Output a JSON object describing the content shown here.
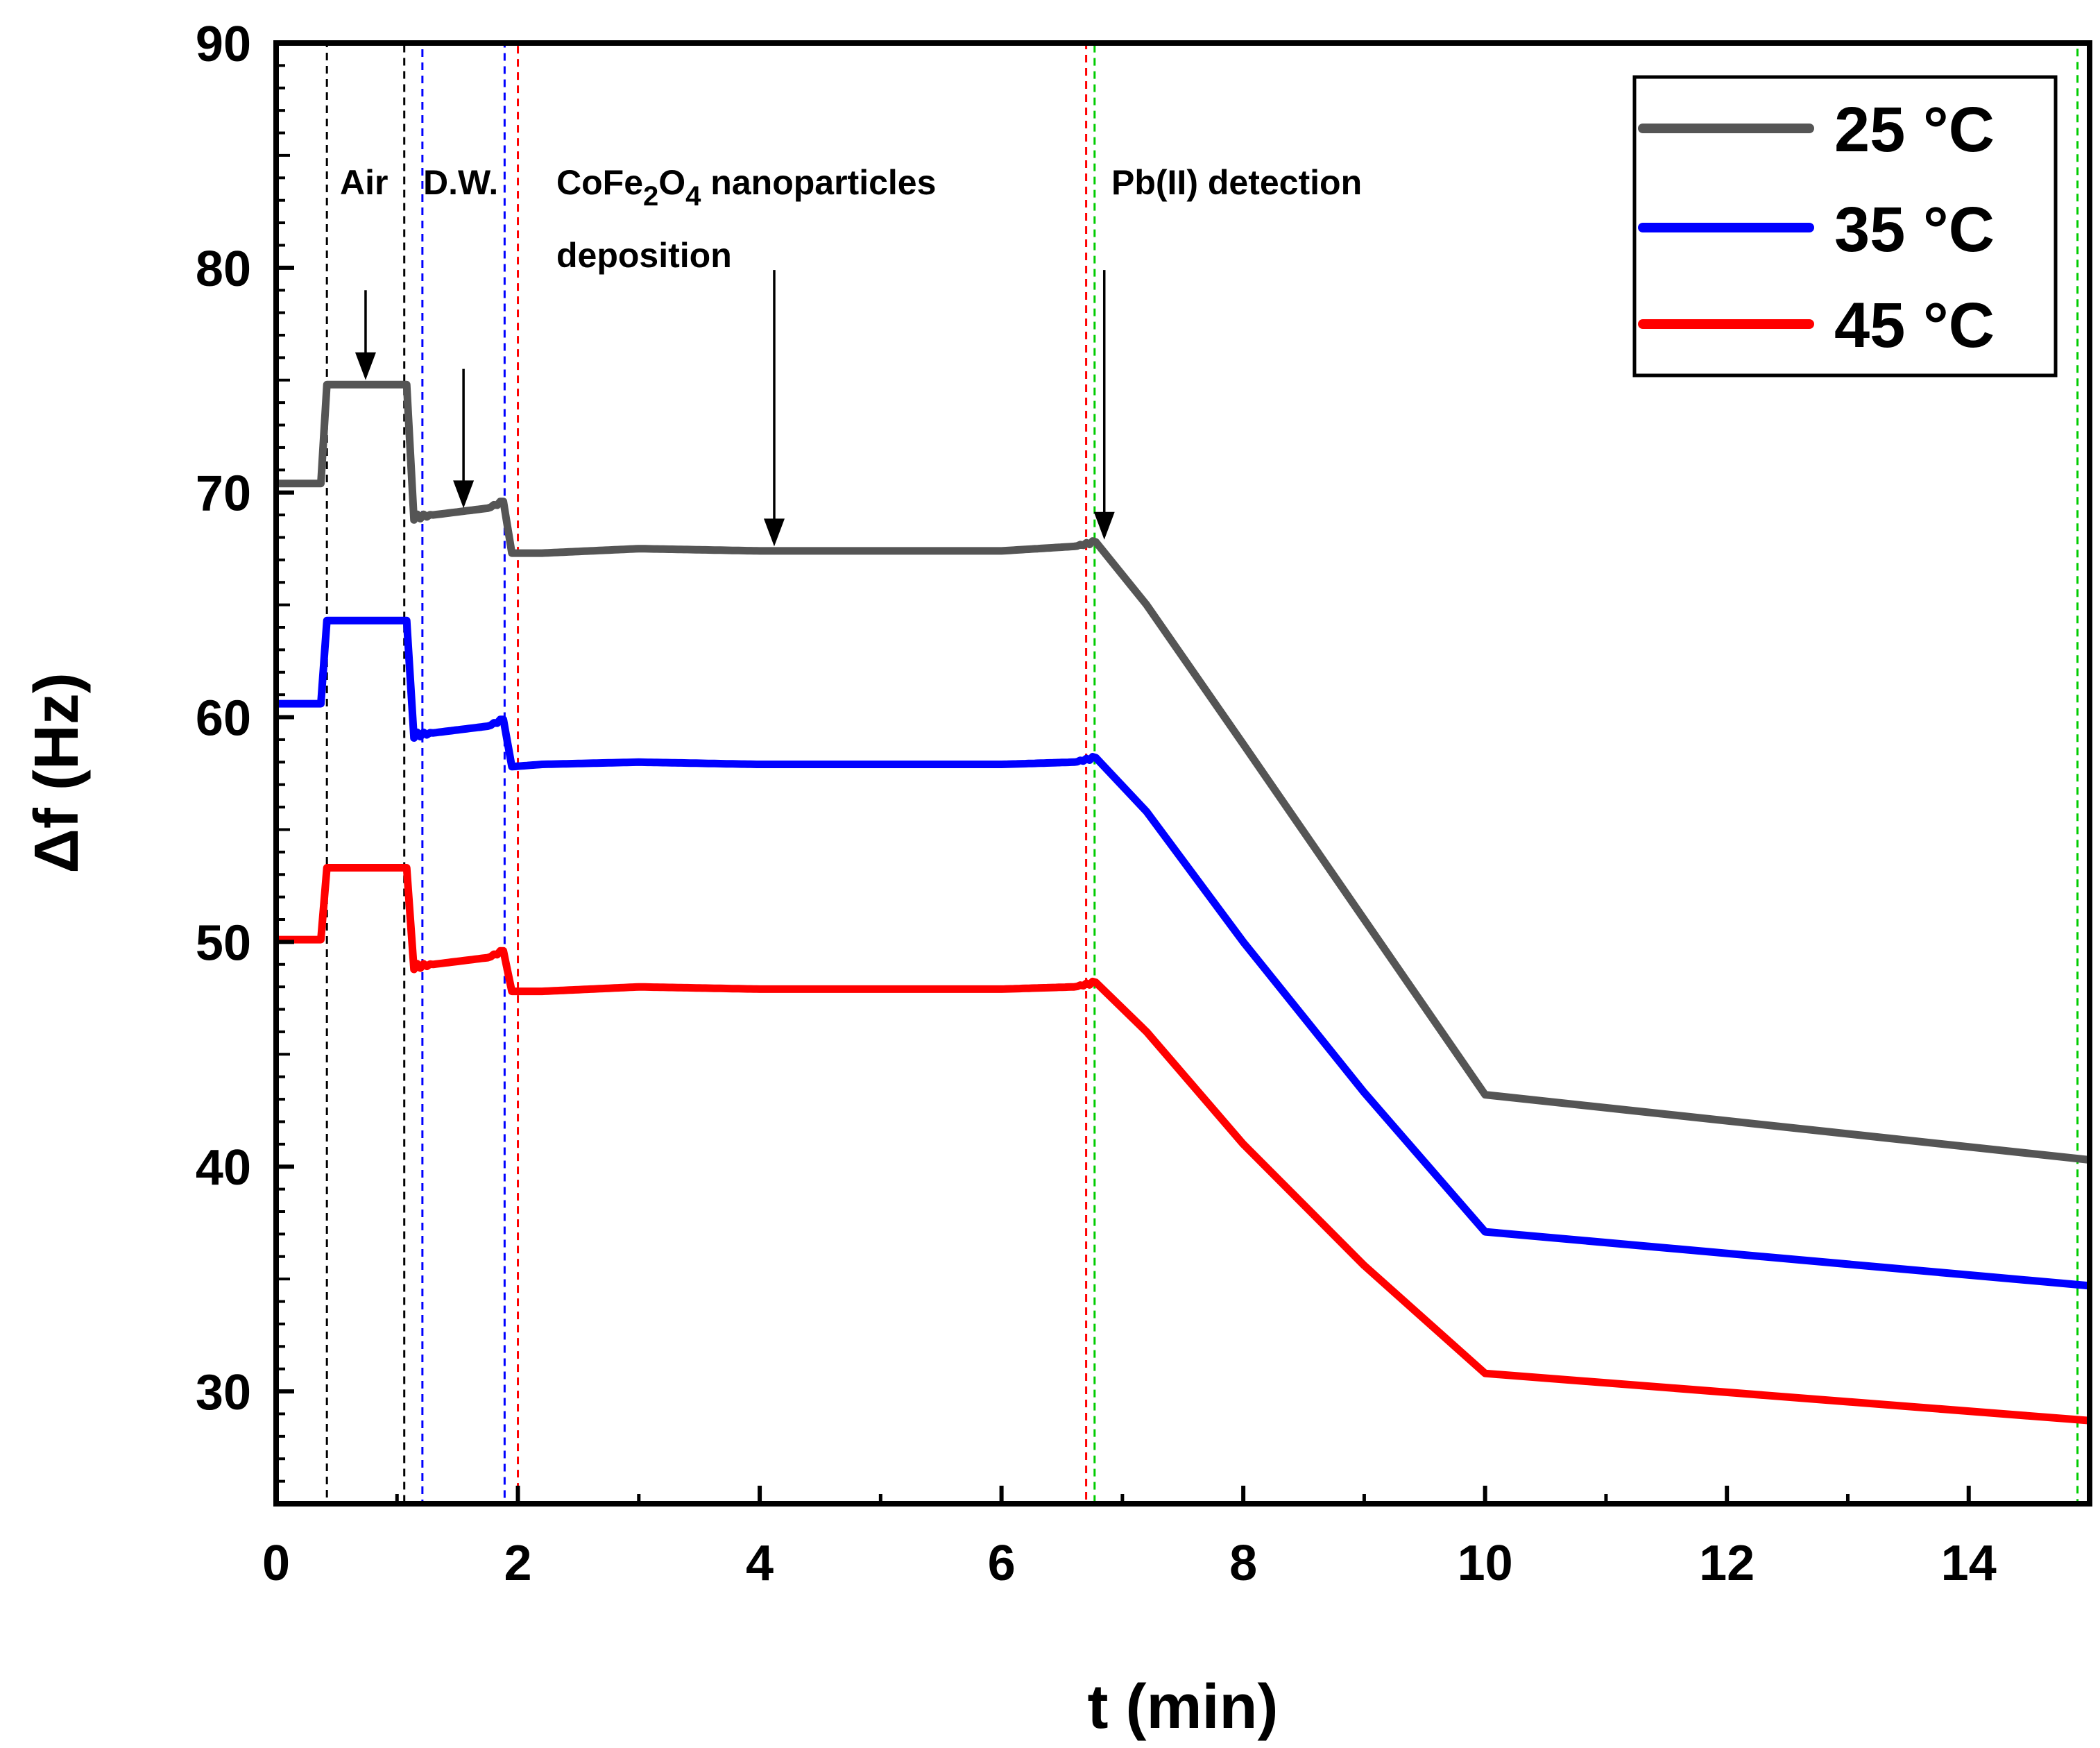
{
  "chart_data": {
    "type": "line",
    "xlabel": "t (min)",
    "ylabel": "Δf (Hz)",
    "xlim": [
      0,
      15
    ],
    "ylim": [
      25,
      90
    ],
    "xticks": [
      0,
      2,
      4,
      6,
      8,
      10,
      12,
      14
    ],
    "yticks": [
      30,
      40,
      50,
      60,
      70,
      80,
      90
    ],
    "legend_position": "top-right",
    "series": [
      {
        "name": "25 °C",
        "color": "#555555",
        "points": [
          [
            0,
            70.4
          ],
          [
            0.37,
            70.4
          ],
          [
            0.42,
            74.8
          ],
          [
            1.08,
            74.8
          ],
          [
            1.14,
            68.9
          ],
          [
            1.3,
            69.0
          ],
          [
            1.45,
            69.1
          ],
          [
            1.6,
            69.2
          ],
          [
            1.75,
            69.3
          ],
          [
            1.88,
            69.6
          ],
          [
            1.95,
            67.3
          ],
          [
            2.2,
            67.3
          ],
          [
            3.0,
            67.5
          ],
          [
            4.0,
            67.4
          ],
          [
            5.0,
            67.4
          ],
          [
            6.0,
            67.4
          ],
          [
            6.6,
            67.6
          ],
          [
            6.78,
            67.8
          ],
          [
            7.2,
            65.0
          ],
          [
            8.0,
            58.8
          ],
          [
            9.0,
            51.0
          ],
          [
            10.0,
            43.2
          ],
          [
            15.0,
            40.3
          ]
        ]
      },
      {
        "name": "35 °C",
        "color": "#0000ff",
        "points": [
          [
            0,
            60.6
          ],
          [
            0.37,
            60.6
          ],
          [
            0.42,
            64.3
          ],
          [
            1.08,
            64.3
          ],
          [
            1.14,
            59.2
          ],
          [
            1.3,
            59.3
          ],
          [
            1.45,
            59.4
          ],
          [
            1.6,
            59.5
          ],
          [
            1.75,
            59.6
          ],
          [
            1.88,
            59.9
          ],
          [
            1.95,
            57.8
          ],
          [
            2.2,
            57.9
          ],
          [
            3.0,
            58.0
          ],
          [
            4.0,
            57.9
          ],
          [
            5.0,
            57.9
          ],
          [
            6.0,
            57.9
          ],
          [
            6.6,
            58.0
          ],
          [
            6.78,
            58.2
          ],
          [
            7.2,
            55.8
          ],
          [
            8.0,
            50.0
          ],
          [
            9.0,
            43.3
          ],
          [
            10.0,
            37.1
          ],
          [
            15.0,
            34.7
          ]
        ]
      },
      {
        "name": "45 °C",
        "color": "#ff0000",
        "points": [
          [
            0,
            50.1
          ],
          [
            0.37,
            50.1
          ],
          [
            0.42,
            53.3
          ],
          [
            1.08,
            53.3
          ],
          [
            1.14,
            48.9
          ],
          [
            1.3,
            49.0
          ],
          [
            1.45,
            49.1
          ],
          [
            1.6,
            49.2
          ],
          [
            1.75,
            49.3
          ],
          [
            1.88,
            49.6
          ],
          [
            1.95,
            47.8
          ],
          [
            2.2,
            47.8
          ],
          [
            3.0,
            48.0
          ],
          [
            4.0,
            47.9
          ],
          [
            5.0,
            47.9
          ],
          [
            6.0,
            47.9
          ],
          [
            6.6,
            48.0
          ],
          [
            6.78,
            48.2
          ],
          [
            7.2,
            46.0
          ],
          [
            8.0,
            41.0
          ],
          [
            9.0,
            35.6
          ],
          [
            10.0,
            30.8
          ],
          [
            15.0,
            28.7
          ]
        ]
      }
    ],
    "regions": [
      {
        "name": "air",
        "x0": 0.42,
        "x1": 1.06,
        "y_top": 90,
        "color": "#000000"
      },
      {
        "name": "dw",
        "x0": 1.21,
        "x1": 1.89,
        "y_top": 90,
        "color": "#0000ff"
      },
      {
        "name": "deposition",
        "x0": 2.0,
        "x1": 6.7,
        "y_top": 90,
        "color": "#ff0000"
      },
      {
        "name": "detection",
        "x0": 6.77,
        "x1": 14.9,
        "y_top": 90,
        "color": "#00cc00"
      }
    ],
    "annotations": [
      {
        "name": "air",
        "text": "Air",
        "arrow_x": 0.74,
        "arrow_y_from": 79.0,
        "arrow_y_to": 75.0
      },
      {
        "name": "dw",
        "text": "D.W.",
        "arrow_x": 1.55,
        "arrow_y_from": 75.5,
        "arrow_y_to": 69.3
      },
      {
        "name": "cofe",
        "text_prefix": "CoFe",
        "sub1": "2",
        "text_mid": "O",
        "sub2": "4",
        "text_suffix": " nanoparticles",
        "line2": "deposition",
        "arrow_x": 4.12,
        "arrow_y_from": 79.9,
        "arrow_y_to": 67.6
      },
      {
        "name": "pb",
        "text": "Pb(II) detection",
        "arrow_x": 6.85,
        "arrow_y_from": 79.9,
        "arrow_y_to": 67.9
      }
    ]
  }
}
